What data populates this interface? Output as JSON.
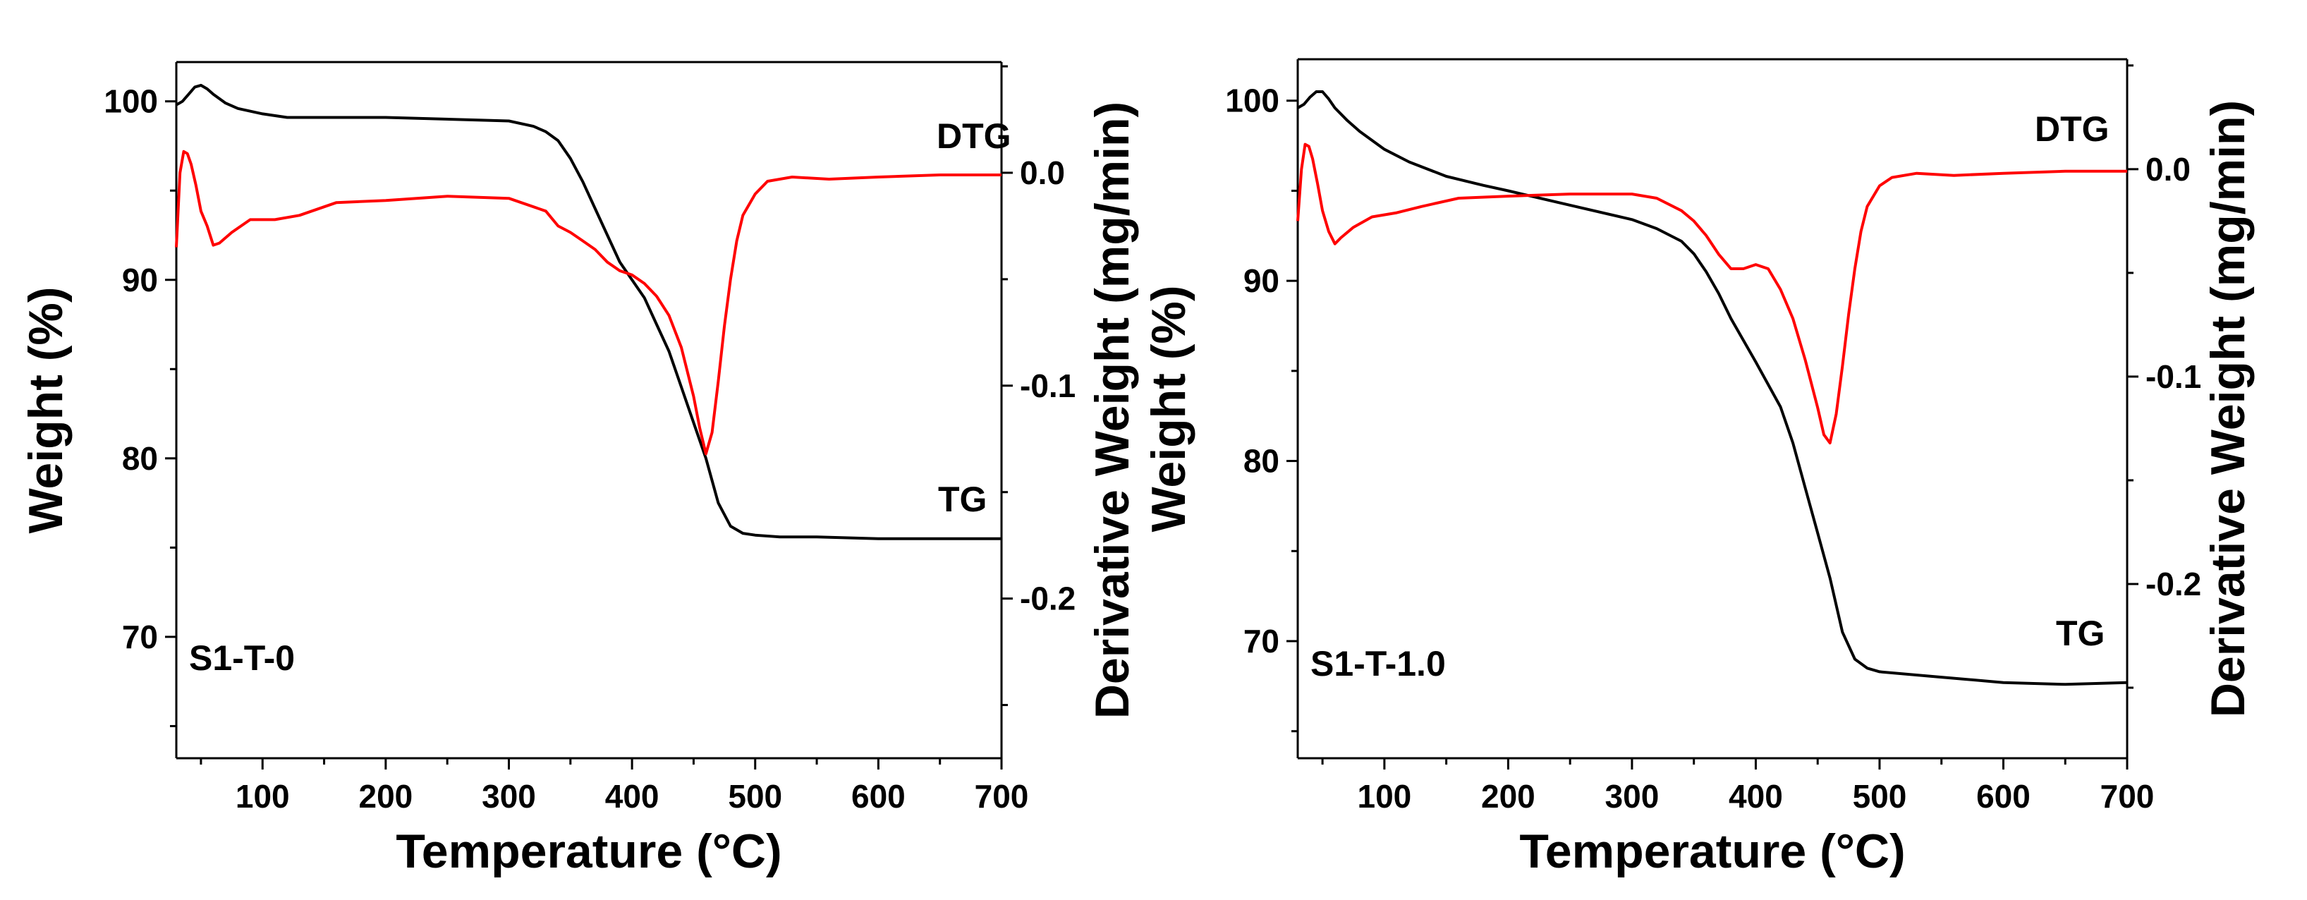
{
  "chart_data": [
    {
      "type": "line",
      "panel_label": "S1-T-0",
      "xlabel": "Temperature (°C)",
      "ylabel": "Weight (%)",
      "y2label": "Derivative Weight (mg/min)",
      "xlim": [
        30,
        700
      ],
      "ylim": [
        63.2,
        102.2
      ],
      "y2lim": [
        -0.275,
        0.052
      ],
      "xticks": [
        100,
        200,
        300,
        400,
        500,
        600,
        700
      ],
      "yticks": [
        70,
        80,
        90,
        100
      ],
      "y2ticks": [
        -0.2,
        -0.1,
        0.0
      ],
      "ytick_labels": [
        "70",
        "80",
        "90",
        "100"
      ],
      "y2tick_labels": [
        "-0.2",
        "-0.1",
        "0.0"
      ],
      "annotations": [
        {
          "text": "DTG",
          "x": 640,
          "y": 0.012,
          "axis": "y2"
        },
        {
          "text": "TG",
          "x": 660,
          "y": 77.7,
          "axis": "y1"
        }
      ],
      "series": [
        {
          "name": "TG",
          "color": "#000000",
          "axis": "y1",
          "x": [
            30,
            35,
            40,
            45,
            50,
            55,
            60,
            70,
            80,
            100,
            120,
            140,
            200,
            300,
            320,
            330,
            340,
            350,
            360,
            370,
            380,
            390,
            400,
            410,
            420,
            430,
            440,
            450,
            460,
            470,
            480,
            490,
            500,
            520,
            550,
            600,
            650,
            700
          ],
          "y": [
            99.8,
            100.0,
            100.4,
            100.8,
            100.9,
            100.7,
            100.4,
            99.9,
            99.6,
            99.3,
            99.1,
            99.1,
            99.1,
            98.9,
            98.6,
            98.3,
            97.8,
            96.8,
            95.5,
            94.0,
            92.5,
            91.0,
            90.0,
            89.0,
            87.5,
            86.0,
            84.0,
            82.0,
            80.0,
            77.5,
            76.2,
            75.8,
            75.7,
            75.6,
            75.6,
            75.5,
            75.5,
            75.5
          ]
        },
        {
          "name": "DTG",
          "color": "#ff0000",
          "axis": "y2",
          "x": [
            30,
            33,
            36,
            39,
            42,
            46,
            50,
            55,
            60,
            65,
            75,
            90,
            110,
            130,
            160,
            200,
            250,
            300,
            330,
            340,
            350,
            360,
            370,
            380,
            390,
            400,
            410,
            420,
            430,
            440,
            450,
            455,
            460,
            465,
            470,
            475,
            480,
            485,
            490,
            500,
            510,
            530,
            560,
            600,
            650,
            700
          ],
          "y": [
            -0.035,
            0.0,
            0.01,
            0.009,
            0.004,
            -0.006,
            -0.018,
            -0.025,
            -0.034,
            -0.033,
            -0.028,
            -0.022,
            -0.022,
            -0.02,
            -0.014,
            -0.013,
            -0.011,
            -0.012,
            -0.018,
            -0.025,
            -0.028,
            -0.032,
            -0.036,
            -0.042,
            -0.046,
            -0.048,
            -0.052,
            -0.058,
            -0.067,
            -0.082,
            -0.105,
            -0.12,
            -0.132,
            -0.122,
            -0.098,
            -0.072,
            -0.05,
            -0.032,
            -0.02,
            -0.01,
            -0.004,
            -0.002,
            -0.003,
            -0.002,
            -0.001,
            -0.001
          ]
        }
      ]
    },
    {
      "type": "line",
      "panel_label": "S1-T-1.0",
      "xlabel": "Temperature (°C)",
      "ylabel": "Weight (%)",
      "y2label": "Derivative Weight (mg/min)",
      "xlim": [
        30,
        700
      ],
      "ylim": [
        63.5,
        102.3
      ],
      "y2lim": [
        -0.284,
        0.053
      ],
      "xticks": [
        100,
        200,
        300,
        400,
        500,
        600,
        700
      ],
      "yticks": [
        70,
        80,
        90,
        100
      ],
      "y2ticks": [
        -0.2,
        -0.1,
        0.0
      ],
      "ytick_labels": [
        "70",
        "80",
        "90",
        "100"
      ],
      "y2tick_labels": [
        "-0.2",
        "-0.1",
        "0.0"
      ],
      "annotations": [
        {
          "text": "DTG",
          "x": 640,
          "y": 0.012,
          "axis": "y2"
        },
        {
          "text": "TG",
          "x": 670,
          "y": 69.6,
          "axis": "y1"
        }
      ],
      "series": [
        {
          "name": "TG",
          "color": "#000000",
          "axis": "y1",
          "x": [
            30,
            35,
            40,
            45,
            50,
            55,
            60,
            70,
            80,
            100,
            120,
            150,
            180,
            200,
            250,
            300,
            320,
            340,
            350,
            360,
            370,
            380,
            400,
            420,
            430,
            440,
            450,
            460,
            470,
            480,
            490,
            500,
            550,
            600,
            650,
            700
          ],
          "y": [
            99.6,
            99.8,
            100.2,
            100.5,
            100.5,
            100.1,
            99.6,
            98.9,
            98.3,
            97.3,
            96.6,
            95.8,
            95.3,
            95.0,
            94.2,
            93.4,
            92.9,
            92.2,
            91.5,
            90.5,
            89.3,
            87.9,
            85.5,
            83.0,
            81.0,
            78.5,
            76.0,
            73.5,
            70.5,
            69.0,
            68.5,
            68.3,
            68.0,
            67.7,
            67.6,
            67.7
          ]
        },
        {
          "name": "DTG",
          "color": "#ff0000",
          "axis": "y2",
          "x": [
            30,
            33,
            36,
            39,
            42,
            46,
            50,
            55,
            60,
            65,
            75,
            90,
            110,
            130,
            160,
            200,
            250,
            300,
            320,
            340,
            350,
            360,
            370,
            380,
            390,
            400,
            410,
            420,
            430,
            440,
            450,
            455,
            460,
            465,
            470,
            475,
            480,
            485,
            490,
            500,
            510,
            530,
            560,
            600,
            650,
            700
          ],
          "y": [
            -0.025,
            0.0,
            0.012,
            0.011,
            0.005,
            -0.007,
            -0.02,
            -0.03,
            -0.036,
            -0.033,
            -0.028,
            -0.023,
            -0.021,
            -0.018,
            -0.014,
            -0.013,
            -0.012,
            -0.012,
            -0.014,
            -0.02,
            -0.025,
            -0.032,
            -0.041,
            -0.048,
            -0.048,
            -0.046,
            -0.048,
            -0.058,
            -0.072,
            -0.092,
            -0.115,
            -0.128,
            -0.132,
            -0.118,
            -0.095,
            -0.07,
            -0.048,
            -0.03,
            -0.018,
            -0.008,
            -0.004,
            -0.002,
            -0.003,
            -0.002,
            -0.001,
            -0.001
          ]
        }
      ]
    }
  ]
}
